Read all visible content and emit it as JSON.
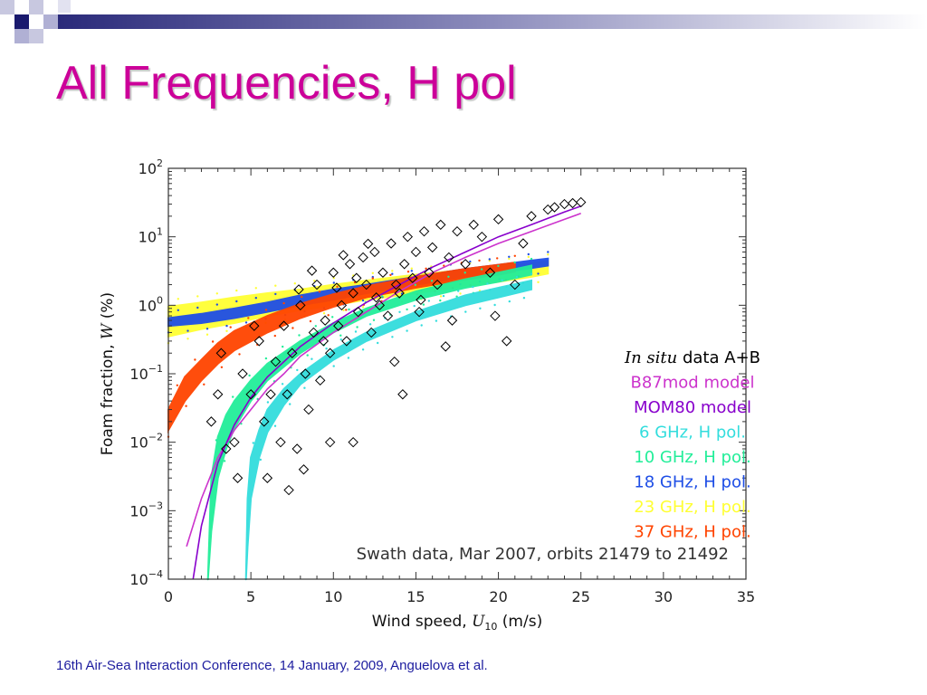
{
  "slide": {
    "title": "All Frequencies, H pol",
    "footer": "16th Air-Sea Interaction Conference, 14 January, 2009, Anguelova et al.",
    "colors": {
      "title": "#cc0099",
      "footer": "#1d1d9f",
      "decor_dark": "#1a1a6e",
      "decor_light": "#b8b8d8"
    }
  },
  "chart_data": {
    "type": "scatter",
    "xlabel_pre": "Wind speed, ",
    "xlabel_var": "U",
    "xlabel_sub": "10",
    "xlabel_post": " (m/s)",
    "ylabel_pre": "Foam fraction, ",
    "ylabel_var": "W",
    "ylabel_post": " (%)",
    "xlim": [
      0,
      35
    ],
    "ylim": [
      0.0001,
      100
    ],
    "yscale": "log",
    "grid": false,
    "x_ticks": [
      "0",
      "5",
      "10",
      "15",
      "20",
      "25",
      "30",
      "35"
    ],
    "y_ticks": [
      {
        "base": "10",
        "exp": "2"
      },
      {
        "base": "10",
        "exp": "1"
      },
      {
        "base": "10",
        "exp": "0"
      },
      {
        "base": "10",
        "exp": "−1"
      },
      {
        "base": "10",
        "exp": "−2"
      },
      {
        "base": "10",
        "exp": "−3"
      },
      {
        "base": "10",
        "exp": "−4"
      }
    ],
    "legend_placement": "right",
    "annotation": "Swath data, Mar 2007, orbits 21479 to 21492",
    "series": [
      {
        "name_italic": "In situ",
        "name_rest": " data A+B",
        "kind": "diamond-markers",
        "color": "#000000",
        "points": [
          [
            3,
            0.05
          ],
          [
            3.2,
            0.2
          ],
          [
            4,
            0.01
          ],
          [
            4.5,
            0.1
          ],
          [
            5,
            0.05
          ],
          [
            5.5,
            0.3
          ],
          [
            5.8,
            0.02
          ],
          [
            6,
            0.003
          ],
          [
            6.5,
            0.15
          ],
          [
            6.8,
            0.01
          ],
          [
            7,
            0.5
          ],
          [
            7.2,
            0.05
          ],
          [
            7.5,
            0.2
          ],
          [
            7.8,
            0.008
          ],
          [
            8,
            1
          ],
          [
            8.3,
            0.1
          ],
          [
            8.5,
            0.03
          ],
          [
            8.8,
            0.4
          ],
          [
            9,
            2
          ],
          [
            9.2,
            0.08
          ],
          [
            9.5,
            0.6
          ],
          [
            9.8,
            0.2
          ],
          [
            10,
            3
          ],
          [
            10.3,
            0.5
          ],
          [
            10.5,
            1
          ],
          [
            10.8,
            0.3
          ],
          [
            11,
            4
          ],
          [
            11.2,
            1.5
          ],
          [
            11.5,
            0.8
          ],
          [
            11.8,
            5
          ],
          [
            12,
            2
          ],
          [
            12.3,
            0.4
          ],
          [
            12.5,
            6
          ],
          [
            12.8,
            1
          ],
          [
            13,
            3
          ],
          [
            13.3,
            0.7
          ],
          [
            13.5,
            8
          ],
          [
            13.8,
            2
          ],
          [
            14,
            1.5
          ],
          [
            14.3,
            4
          ],
          [
            14.5,
            10
          ],
          [
            14.8,
            2.5
          ],
          [
            15,
            6
          ],
          [
            15.3,
            1.2
          ],
          [
            15.5,
            12
          ],
          [
            15.8,
            3
          ],
          [
            16,
            7
          ],
          [
            16.3,
            2
          ],
          [
            16.5,
            15
          ],
          [
            17,
            5
          ],
          [
            17.5,
            12
          ],
          [
            18,
            4
          ],
          [
            18.5,
            15
          ],
          [
            19,
            10
          ],
          [
            19.5,
            3
          ],
          [
            20,
            18
          ],
          [
            21,
            2
          ],
          [
            21.5,
            8
          ],
          [
            22,
            20
          ],
          [
            23,
            25
          ],
          [
            24,
            30
          ],
          [
            25,
            32
          ],
          [
            4.2,
            0.003
          ],
          [
            3.5,
            0.008
          ],
          [
            5.2,
            0.5
          ],
          [
            6.2,
            0.05
          ],
          [
            7.3,
            0.002
          ],
          [
            8.2,
            0.004
          ],
          [
            9.4,
            0.3
          ],
          [
            10.2,
            1.8
          ],
          [
            11.4,
            2.5
          ],
          [
            12.6,
            1.3
          ],
          [
            13.7,
            0.15
          ],
          [
            14.2,
            0.05
          ],
          [
            15.2,
            0.8
          ],
          [
            16.8,
            0.25
          ],
          [
            17.2,
            0.6
          ],
          [
            19.8,
            0.7
          ],
          [
            20.5,
            0.3
          ],
          [
            9.8,
            0.01
          ],
          [
            11.2,
            0.01
          ],
          [
            2.6,
            0.02
          ],
          [
            23.4,
            27
          ],
          [
            24.5,
            31
          ],
          [
            7.9,
            1.7
          ],
          [
            8.7,
            3.2
          ],
          [
            10.6,
            5.4
          ],
          [
            12.1,
            7.9
          ]
        ]
      },
      {
        "name": "B87mod  model",
        "kind": "curve",
        "color": "#cc33cc",
        "x": [
          1.1,
          2,
          3,
          4,
          5,
          6,
          7,
          8,
          10,
          12,
          14,
          16,
          18,
          20,
          22,
          24,
          25
        ],
        "y": [
          0.0003,
          0.0015,
          0.006,
          0.015,
          0.03,
          0.06,
          0.1,
          0.18,
          0.4,
          0.8,
          1.6,
          3,
          5,
          8,
          12,
          18,
          22
        ]
      },
      {
        "name": "MOM80   model",
        "kind": "curve",
        "color": "#8800cc",
        "x": [
          1.5,
          2,
          3,
          4,
          5,
          6,
          8,
          10,
          12,
          14,
          16,
          18,
          20,
          22,
          24,
          25
        ],
        "y": [
          0.0001,
          0.0006,
          0.005,
          0.018,
          0.045,
          0.09,
          0.25,
          0.55,
          1.1,
          2,
          3.6,
          6,
          10,
          15,
          23,
          28
        ]
      },
      {
        "name": " 6 GHz,  H  pol.",
        "kind": "band",
        "color": "#33dddd",
        "x": [
          4.7,
          4.8,
          5,
          5.5,
          6,
          7,
          8,
          10,
          12,
          15,
          18,
          20,
          22
        ],
        "low": [
          0.0001,
          0.0003,
          0.0015,
          0.006,
          0.014,
          0.035,
          0.07,
          0.16,
          0.3,
          0.6,
          1,
          1.3,
          1.7
        ],
        "high": [
          0.0001,
          0.0015,
          0.006,
          0.015,
          0.03,
          0.06,
          0.1,
          0.22,
          0.4,
          0.8,
          1.4,
          1.8,
          2.3
        ]
      },
      {
        "name": "10  GHz,  H  pol.",
        "kind": "band",
        "color": "#22ee99",
        "x": [
          2.4,
          2.6,
          3,
          3.5,
          4,
          5,
          6,
          8,
          10,
          12,
          15,
          18,
          20,
          22
        ],
        "low": [
          0.0001,
          0.0005,
          0.003,
          0.008,
          0.016,
          0.04,
          0.08,
          0.2,
          0.4,
          0.7,
          1.2,
          1.8,
          2.2,
          2.8
        ],
        "high": [
          0.0001,
          0.003,
          0.012,
          0.025,
          0.04,
          0.08,
          0.14,
          0.3,
          0.55,
          0.9,
          1.6,
          2.4,
          3,
          3.8
        ]
      },
      {
        "name": "18  GHz,  H  pol.",
        "kind": "band",
        "color": "#1e4ee6",
        "x": [
          0,
          2,
          4,
          6,
          8,
          10,
          12,
          15,
          18,
          20,
          22,
          23
        ],
        "low": [
          0.5,
          0.55,
          0.65,
          0.8,
          1,
          1.2,
          1.5,
          2,
          2.6,
          3,
          3.5,
          3.8
        ],
        "high": [
          0.65,
          0.75,
          0.9,
          1.1,
          1.4,
          1.7,
          2,
          2.6,
          3.4,
          3.9,
          4.5,
          4.8
        ]
      },
      {
        "name": "23  GHz,  H  pol.",
        "kind": "band",
        "color": "#ffff33",
        "x": [
          0,
          2,
          4,
          6,
          8,
          10,
          12,
          15,
          18,
          20,
          22,
          23
        ],
        "low": [
          0.35,
          0.45,
          0.55,
          0.7,
          0.85,
          1,
          1.2,
          1.5,
          1.9,
          2.2,
          2.6,
          2.9
        ],
        "high": [
          0.95,
          1.1,
          1.3,
          1.5,
          1.7,
          2,
          2.3,
          2.8,
          3.3,
          3.7,
          4.1,
          4.4
        ]
      },
      {
        "name": "37  GHz,  H  pol.",
        "kind": "band",
        "color": "#ff4400",
        "x": [
          0,
          1,
          2,
          3,
          4,
          6,
          8,
          10,
          12,
          15,
          18,
          20,
          21
        ],
        "low": [
          0.015,
          0.04,
          0.08,
          0.14,
          0.22,
          0.4,
          0.65,
          0.95,
          1.3,
          1.8,
          2.4,
          2.8,
          3.1
        ],
        "high": [
          0.03,
          0.09,
          0.16,
          0.28,
          0.42,
          0.7,
          1.05,
          1.45,
          1.9,
          2.6,
          3.4,
          3.9,
          4.2
        ]
      }
    ]
  }
}
